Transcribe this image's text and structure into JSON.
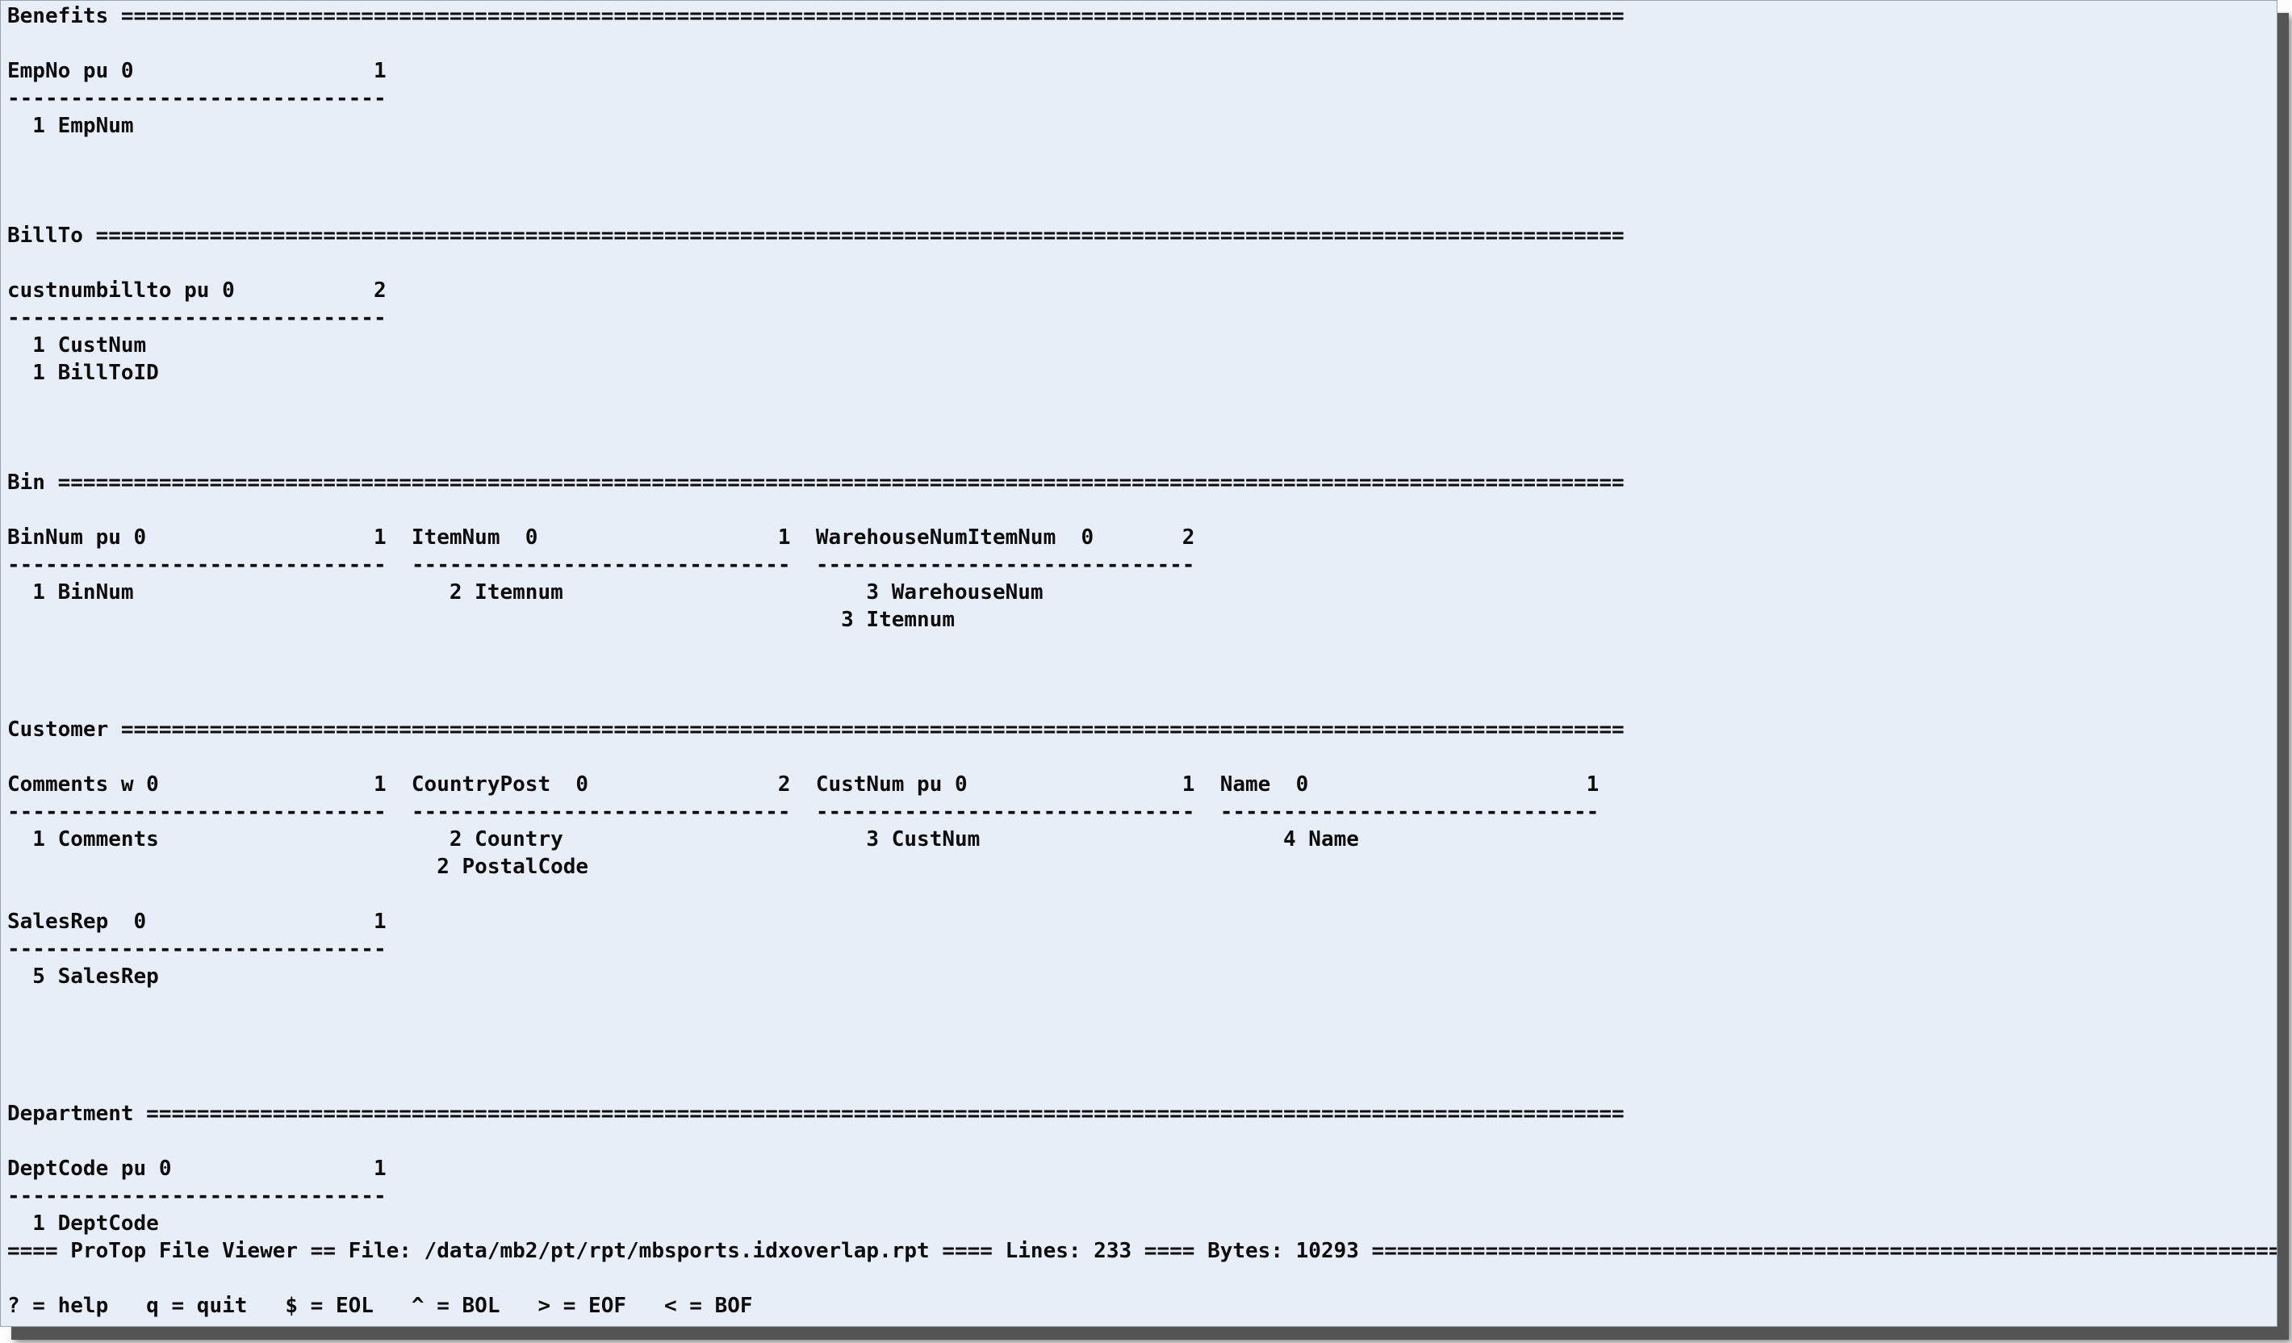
{
  "app": {
    "name": "ProTop File Viewer",
    "bg_color": "#e8eef8",
    "fg_color": "#0d0d0d",
    "shadow_color": "#545454"
  },
  "status": {
    "file": "/data/mb2/pt/rpt/mbsports.idxoverlap.rpt",
    "lines": "233",
    "bytes": "10293"
  },
  "help": {
    "shortcuts": [
      {
        "key": "?",
        "action": "help"
      },
      {
        "key": "q",
        "action": "quit"
      },
      {
        "key": "$",
        "action": "EOL"
      },
      {
        "key": "^",
        "action": "BOL"
      },
      {
        "key": ">",
        "action": "EOF"
      },
      {
        "key": "<",
        "action": "BOF"
      }
    ]
  },
  "report": {
    "tables": [
      {
        "table": "Benefits",
        "indexes": [
          {
            "header": "EmpNo pu 0",
            "count": "1",
            "fields": [
              "1 EmpNum"
            ]
          }
        ]
      },
      {
        "table": "BillTo",
        "indexes": [
          {
            "header": "custnumbillto pu 0",
            "count": "2",
            "fields": [
              "1 CustNum",
              "1 BillToID"
            ]
          }
        ]
      },
      {
        "table": "Bin",
        "indexes": [
          {
            "header": "BinNum pu 0",
            "count": "1",
            "fields": [
              "1 BinNum"
            ]
          },
          {
            "header": "ItemNum  0",
            "count": "1",
            "fields": [
              "2 Itemnum"
            ]
          },
          {
            "header": "WarehouseNumItemNum  0",
            "count": "2",
            "fields": [
              "3 WarehouseNum",
              "3 Itemnum"
            ]
          }
        ]
      },
      {
        "table": "Customer",
        "indexes": [
          {
            "header": "Comments w 0",
            "count": "1",
            "fields": [
              "1 Comments"
            ]
          },
          {
            "header": "CountryPost  0",
            "count": "2",
            "fields": [
              "2 Country",
              "2 PostalCode"
            ]
          },
          {
            "header": "CustNum pu 0",
            "count": "1",
            "fields": [
              "3 CustNum"
            ]
          },
          {
            "header": "Name  0",
            "count": "1",
            "fields": [
              "4 Name"
            ]
          },
          {
            "header": "SalesRep  0",
            "count": "1",
            "fields": [
              "5 SalesRep"
            ]
          }
        ]
      },
      {
        "table": "Department",
        "indexes": [
          {
            "header": "DeptCode pu 0",
            "count": "1",
            "fields": [
              "1 DeptCode"
            ]
          }
        ]
      }
    ]
  },
  "terminal": {
    "rows": 48,
    "cols": 180,
    "lines": [
      {
        "row": 0,
        "name": "section-header-benefits",
        "runs": [
          {
            "c": 0,
            "t": "Benefits"
          },
          {
            "c": 9,
            "f": "=",
            "n": 119
          }
        ]
      },
      {
        "row": 2,
        "name": "index-header-empno",
        "runs": [
          {
            "c": 0,
            "t": "EmpNo pu 0"
          },
          {
            "c": 29,
            "t": "1"
          }
        ]
      },
      {
        "row": 3,
        "name": "index-separator",
        "runs": [
          {
            "c": 0,
            "f": "-",
            "n": 30
          }
        ]
      },
      {
        "row": 4,
        "name": "field-row-empnum",
        "runs": [
          {
            "c": 2,
            "t": "1 EmpNum"
          }
        ]
      },
      {
        "row": 8,
        "name": "section-header-billto",
        "runs": [
          {
            "c": 0,
            "t": "BillTo"
          },
          {
            "c": 7,
            "f": "=",
            "n": 121
          }
        ]
      },
      {
        "row": 10,
        "name": "index-header-custnumbillto",
        "runs": [
          {
            "c": 0,
            "t": "custnumbillto pu 0"
          },
          {
            "c": 29,
            "t": "2"
          }
        ]
      },
      {
        "row": 11,
        "name": "index-separator",
        "runs": [
          {
            "c": 0,
            "f": "-",
            "n": 30
          }
        ]
      },
      {
        "row": 12,
        "name": "field-row-custnum",
        "runs": [
          {
            "c": 2,
            "t": "1 CustNum"
          }
        ]
      },
      {
        "row": 13,
        "name": "field-row-billtoid",
        "runs": [
          {
            "c": 2,
            "t": "1 BillToID"
          }
        ]
      },
      {
        "row": 17,
        "name": "section-header-bin",
        "runs": [
          {
            "c": 0,
            "t": "Bin"
          },
          {
            "c": 4,
            "f": "=",
            "n": 124
          }
        ]
      },
      {
        "row": 19,
        "name": "index-header-bin-row",
        "runs": [
          {
            "c": 0,
            "t": "BinNum pu 0"
          },
          {
            "c": 29,
            "t": "1"
          },
          {
            "c": 32,
            "t": "ItemNum  0"
          },
          {
            "c": 61,
            "t": "1"
          },
          {
            "c": 64,
            "t": "WarehouseNumItemNum  0"
          },
          {
            "c": 93,
            "t": "2"
          }
        ]
      },
      {
        "row": 20,
        "name": "index-separator-row",
        "runs": [
          {
            "c": 0,
            "f": "-",
            "n": 30
          },
          {
            "c": 32,
            "f": "-",
            "n": 30
          },
          {
            "c": 64,
            "f": "-",
            "n": 30
          }
        ]
      },
      {
        "row": 21,
        "name": "field-row-bin-1",
        "runs": [
          {
            "c": 2,
            "t": "1 BinNum"
          },
          {
            "c": 35,
            "t": "2 Itemnum"
          },
          {
            "c": 68,
            "t": "3 WarehouseNum"
          }
        ]
      },
      {
        "row": 22,
        "name": "field-row-bin-2",
        "runs": [
          {
            "c": 66,
            "t": "3 Itemnum"
          }
        ]
      },
      {
        "row": 26,
        "name": "section-header-customer",
        "runs": [
          {
            "c": 0,
            "t": "Customer"
          },
          {
            "c": 9,
            "f": "=",
            "n": 119
          }
        ]
      },
      {
        "row": 28,
        "name": "index-header-customer-row",
        "runs": [
          {
            "c": 0,
            "t": "Comments w 0"
          },
          {
            "c": 29,
            "t": "1"
          },
          {
            "c": 32,
            "t": "CountryPost  0"
          },
          {
            "c": 61,
            "t": "2"
          },
          {
            "c": 64,
            "t": "CustNum pu 0"
          },
          {
            "c": 93,
            "t": "1"
          },
          {
            "c": 96,
            "t": "Name  0"
          },
          {
            "c": 125,
            "t": "1"
          }
        ]
      },
      {
        "row": 29,
        "name": "index-separator-row",
        "runs": [
          {
            "c": 0,
            "f": "-",
            "n": 30
          },
          {
            "c": 32,
            "f": "-",
            "n": 30
          },
          {
            "c": 64,
            "f": "-",
            "n": 30
          },
          {
            "c": 96,
            "f": "-",
            "n": 30
          }
        ]
      },
      {
        "row": 30,
        "name": "field-row-customer-1",
        "runs": [
          {
            "c": 2,
            "t": "1 Comments"
          },
          {
            "c": 35,
            "t": "2 Country"
          },
          {
            "c": 68,
            "t": "3 CustNum"
          },
          {
            "c": 101,
            "t": "4 Name"
          }
        ]
      },
      {
        "row": 31,
        "name": "field-row-customer-2",
        "runs": [
          {
            "c": 34,
            "t": "2 PostalCode"
          }
        ]
      },
      {
        "row": 33,
        "name": "index-header-salesrep",
        "runs": [
          {
            "c": 0,
            "t": "SalesRep  0"
          },
          {
            "c": 29,
            "t": "1"
          }
        ]
      },
      {
        "row": 34,
        "name": "index-separator",
        "runs": [
          {
            "c": 0,
            "f": "-",
            "n": 30
          }
        ]
      },
      {
        "row": 35,
        "name": "field-row-salesrep",
        "runs": [
          {
            "c": 2,
            "t": "5 SalesRep"
          }
        ]
      },
      {
        "row": 40,
        "name": "section-header-department",
        "runs": [
          {
            "c": 0,
            "t": "Department"
          },
          {
            "c": 11,
            "f": "=",
            "n": 117
          }
        ]
      },
      {
        "row": 42,
        "name": "index-header-deptcode",
        "runs": [
          {
            "c": 0,
            "t": "DeptCode pu 0"
          },
          {
            "c": 29,
            "t": "1"
          }
        ]
      },
      {
        "row": 43,
        "name": "index-separator",
        "runs": [
          {
            "c": 0,
            "f": "-",
            "n": 30
          }
        ]
      },
      {
        "row": 44,
        "name": "field-row-deptcode",
        "runs": [
          {
            "c": 2,
            "t": "1 DeptCode"
          }
        ]
      },
      {
        "row": 45,
        "name": "status-bar",
        "runs": [
          {
            "c": 0,
            "t": "==== ProTop File Viewer == File: /data/mb2/pt/rpt/mbsports.idxoverlap.rpt ==== Lines: 233 ==== Bytes: 10293 "
          },
          {
            "c": 108,
            "f": "=",
            "n": 72
          }
        ]
      },
      {
        "row": 47,
        "name": "help-bar",
        "runs": [
          {
            "c": 0,
            "t": "? = help   q = quit   $ = EOL   ^ = BOL   > = EOF   < = BOF"
          }
        ]
      }
    ]
  }
}
